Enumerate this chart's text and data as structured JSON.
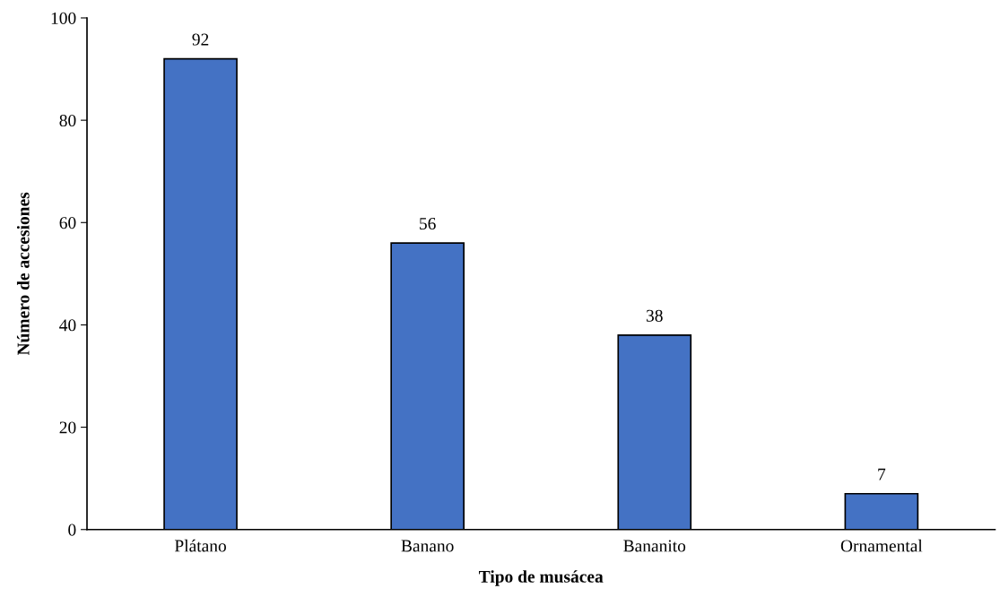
{
  "chart_data": {
    "type": "bar",
    "xlabel": "Tipo de musácea",
    "ylabel": "Número de accesiones",
    "categories": [
      "Plátano",
      "Banano",
      "Bananito",
      "Ornamental"
    ],
    "values": [
      92,
      56,
      38,
      7
    ],
    "color": "#4472c4",
    "ylim": [
      0,
      100
    ],
    "yticks": [
      0,
      20,
      40,
      60,
      80,
      100
    ],
    "grid": false,
    "data_labels": true
  }
}
